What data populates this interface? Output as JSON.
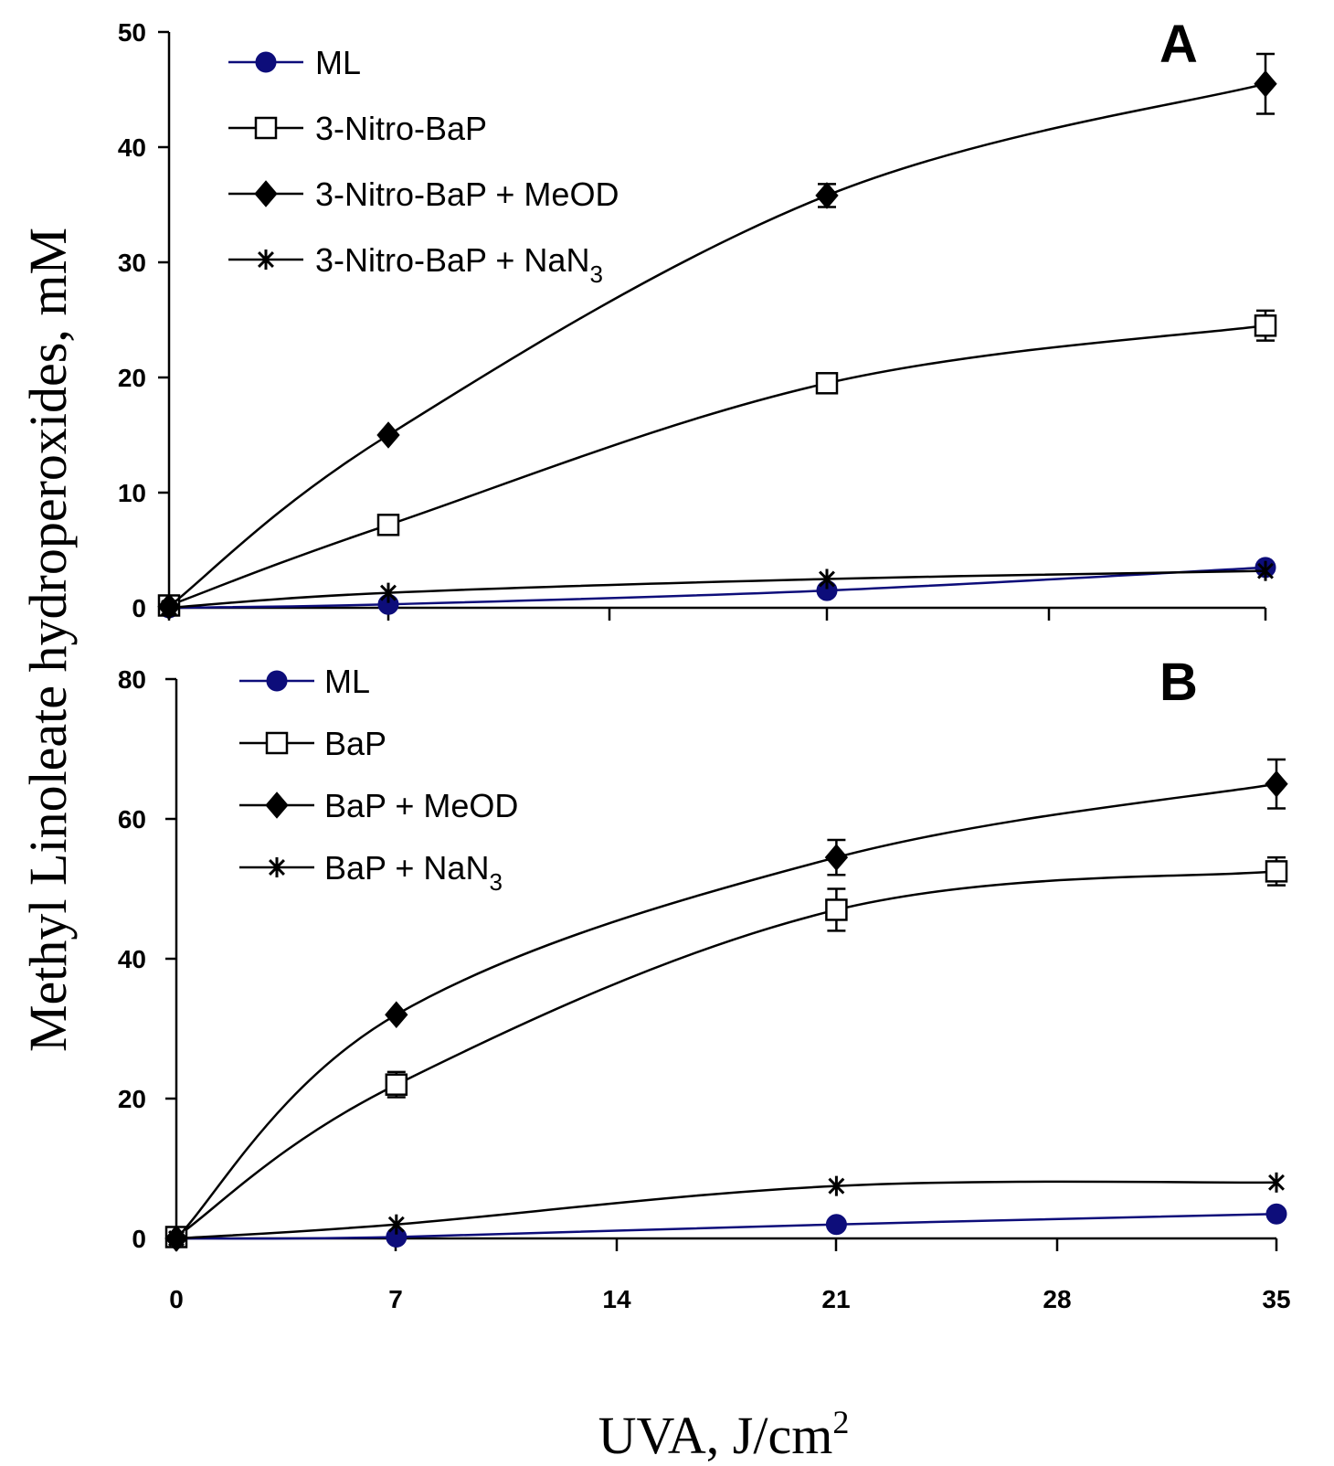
{
  "colors": {
    "ml": "#0d0d7a",
    "other": "#000000",
    "background": "#ffffff"
  },
  "y_axis_label": "Methyl Linoleate hydroperoxides, mM",
  "x_axis_label": {
    "main": "UVA, J/cm",
    "superscript": "2"
  },
  "chart_data": [
    {
      "type": "line",
      "panel": "A",
      "xlabel": "UVA, J/cm2",
      "ylabel": "Methyl Linoleate hydroperoxides, mM",
      "xlim": [
        0,
        35
      ],
      "ylim": [
        0,
        50
      ],
      "y_ticks": [
        0,
        10,
        20,
        30,
        40,
        50
      ],
      "legend_position": "top-left",
      "x": [
        0,
        7,
        21,
        35
      ],
      "series": [
        {
          "name": "ML",
          "marker": "circle",
          "values": [
            0,
            0.3,
            1.5,
            3.5
          ],
          "errors": [
            0,
            0,
            0,
            0
          ]
        },
        {
          "name": "3-Nitro-BaP",
          "marker": "square-open",
          "values": [
            0.2,
            7.2,
            19.5,
            24.5
          ],
          "errors": [
            0,
            0,
            0,
            1.3
          ]
        },
        {
          "name": "3-Nitro-BaP + MeOD",
          "marker": "diamond",
          "values": [
            0.1,
            15,
            35.8,
            45.5
          ],
          "errors": [
            0,
            0,
            1.0,
            2.6
          ]
        },
        {
          "name": "3-Nitro-BaP + NaN",
          "name_subscript": "3",
          "marker": "asterisk",
          "values": [
            0,
            1.3,
            2.5,
            3.2
          ],
          "errors": [
            0,
            0,
            0,
            0
          ]
        }
      ]
    },
    {
      "type": "line",
      "panel": "B",
      "xlabel": "UVA, J/cm2",
      "ylabel": "Methyl Linoleate hydroperoxides, mM",
      "xlim": [
        0,
        35
      ],
      "ylim": [
        0,
        80
      ],
      "y_ticks": [
        0,
        20,
        40,
        60,
        80
      ],
      "x_ticks": [
        0,
        7,
        14,
        21,
        28,
        35
      ],
      "legend_position": "top-left",
      "x": [
        0,
        7,
        21,
        35
      ],
      "series": [
        {
          "name": "ML",
          "marker": "circle",
          "values": [
            0,
            0.2,
            2,
            3.5
          ],
          "errors": [
            0,
            0,
            0,
            0
          ]
        },
        {
          "name": "BaP",
          "marker": "square-open",
          "values": [
            0.2,
            22,
            47,
            52.5
          ],
          "errors": [
            0,
            1.8,
            3.0,
            2.0
          ]
        },
        {
          "name": "BaP + MeOD",
          "marker": "diamond",
          "values": [
            0,
            32,
            54.5,
            65
          ],
          "errors": [
            0,
            0,
            2.5,
            3.5
          ]
        },
        {
          "name": "BaP + NaN",
          "name_subscript": "3",
          "marker": "asterisk",
          "values": [
            0,
            2,
            7.5,
            8
          ],
          "errors": [
            0,
            0,
            0,
            0
          ]
        }
      ]
    }
  ]
}
